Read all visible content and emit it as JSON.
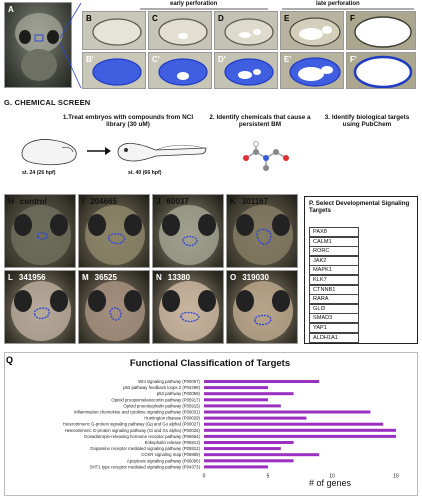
{
  "top": {
    "panels": {
      "A": "A",
      "B": "B",
      "C": "C",
      "D": "D",
      "E": "E",
      "F": "F",
      "B2": "B'",
      "C2": "C'",
      "D2": "D'",
      "E2": "E'",
      "F2": "F'"
    },
    "early_label": "early perforation",
    "late_label": "late perforation"
  },
  "screen": {
    "title": "G. CHEMICAL SCREEN",
    "step1": "1.Treat embryos with compounds from NCI library (30 uM)",
    "step2": "2. Identify chemicals that cause a persistent BM",
    "step3": "3. Identify biological targets using PubChem",
    "stage1": "st. 24 (26 hpf)",
    "stage2": "st. 40 (66 hpf)"
  },
  "grid": {
    "row1": [
      {
        "letter": "H",
        "name": "control"
      },
      {
        "letter": "I",
        "name": "204665"
      },
      {
        "letter": "J",
        "name": "60037"
      },
      {
        "letter": "K",
        "name": "301167"
      }
    ],
    "row2": [
      {
        "letter": "L",
        "name": "341956"
      },
      {
        "letter": "M",
        "name": "36525"
      },
      {
        "letter": "N",
        "name": "13380"
      },
      {
        "letter": "O",
        "name": "319030"
      }
    ]
  },
  "targets": {
    "title": "P. Select Developmental Signaling Targets",
    "items": [
      "PAX8",
      "CALM1",
      "RORC",
      "JAK2",
      "MAPK1",
      "KLK7",
      "CTNNB1",
      "RARA",
      "GLI3",
      "SMAD3",
      "YAP1",
      "ALDH1A1"
    ]
  },
  "chart_data": {
    "type": "bar",
    "panel_letter": "Q",
    "title": "Functional Classification of Targets",
    "xlabel": "# of genes",
    "ylabel": "",
    "xlim": [
      0,
      15
    ],
    "xticks": [
      0,
      5,
      10,
      15
    ],
    "categories": [
      "Wnt signaling pathway (P00057)",
      "p53 pathway feedback loops 2 (P04398)",
      "p53 pathway (P00059)",
      "Opioid proopiomelanocortin pathway (P05917)",
      "Opioid proenkephalin pathway (P05915)",
      "Inflammation chemokine and cytokine signaling pathway (P00031)",
      "Huntington disease (P00029)",
      "Heterotrimeric G-protein signaling pathway (Gq and Go alpha) (P00027)",
      "Heterotrimeric G-protein signaling pathway (Gi and Gs alpha) (P00026)",
      "Gonadotropin-releasing hormone receptor pathway (P06664)",
      "Enkephalin release (P05913)",
      "Dopamine receptor mediated signaling pathway (P05912)",
      "CCKR signaling map (P06959)",
      "Apoptosis signaling pathway (P00006)",
      "5HT1 type receptor mediated signaling pathway (P04373)"
    ],
    "values": [
      9,
      5,
      7,
      5,
      6,
      13,
      8,
      14,
      15,
      15,
      7,
      6,
      9,
      7,
      5
    ],
    "bar_color": "#9b2fbf",
    "grid": false
  }
}
